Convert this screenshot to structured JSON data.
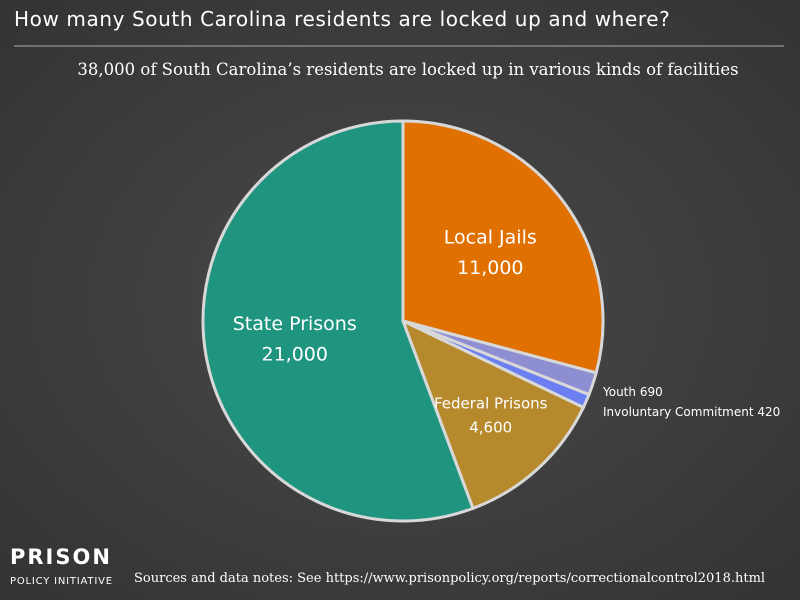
{
  "chart_data": {
    "type": "pie",
    "title": "How many South Carolina residents are locked up and where?",
    "subtitle": "38,000 of South Carolina’s residents are locked up in various kinds of facilities",
    "categories": [
      "Local Jails",
      "Youth",
      "Involuntary Commitment",
      "Federal Prisons",
      "State Prisons"
    ],
    "values": [
      11000,
      690,
      420,
      4600,
      21000
    ],
    "value_labels": [
      "11,000",
      "690",
      "420",
      "4,600",
      "21,000"
    ],
    "colors": [
      "#e07000",
      "#8e8ed2",
      "#6c7ff2",
      "#b68a2c",
      "#1f9580"
    ],
    "source": "Sources and data notes: See https://www.prisonpolicy.org/reports/correctionalcontrol2018.html"
  },
  "logo": {
    "name": "PRISON",
    "tagline": "POLICY INITIATIVE"
  }
}
